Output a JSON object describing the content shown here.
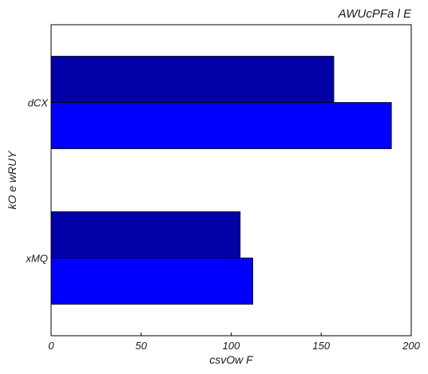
{
  "chart_data": {
    "type": "bar",
    "orientation": "horizontal",
    "title": "AWUcPFa l E",
    "xlabel": "csvOw F",
    "ylabel": "kO e wRUY",
    "categories": [
      "xMQ",
      "dCX"
    ],
    "series": [
      {
        "values": [
          112,
          189
        ],
        "color": "#0000ff"
      },
      {
        "values": [
          105,
          157
        ],
        "color": "#0000a6"
      }
    ],
    "xlim": [
      0,
      200
    ],
    "xticks": [
      0,
      50,
      100,
      150,
      200
    ],
    "grid": false,
    "legend": "none"
  }
}
